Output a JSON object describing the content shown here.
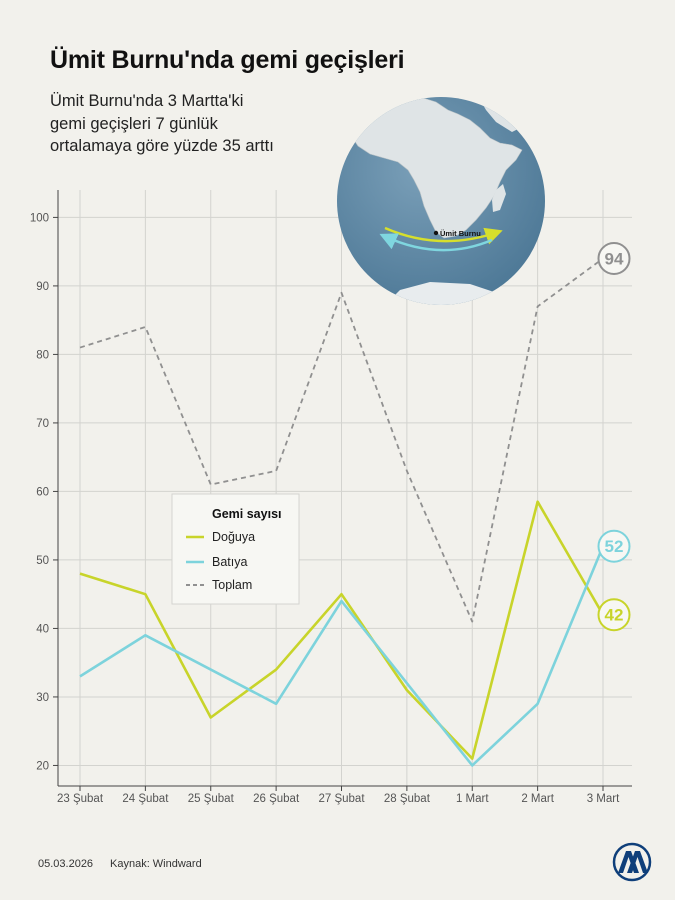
{
  "title": "Ümit Burnu'nda gemi geçişleri",
  "subtitle": "Ümit Burnu'nda  3 Martta'ki gemi geçişleri 7 günlük ortalamaya göre yüzde 35 arttı",
  "footer": {
    "date": "05.03.2026",
    "source": "Kaynak: Windward"
  },
  "logo": {
    "icon": "aa-logo-icon",
    "text": "AA"
  },
  "map": {
    "label": "Ümit Burnu",
    "ocean_color": "#5f8aa6",
    "land_color": "#dfe4e6"
  },
  "chart_data": {
    "type": "line",
    "title": "Ümit Burnu'nda gemi geçişleri",
    "categories": [
      "23 Şubat",
      "24 Şubat",
      "25 Şubat",
      "26 Şubat",
      "27 Şubat",
      "28 Şubat",
      "1 Mart",
      "2 Mart",
      "3 Mart"
    ],
    "ylim": [
      17,
      104
    ],
    "yticks": [
      20,
      30,
      40,
      50,
      60,
      70,
      80,
      90,
      100
    ],
    "grid": true,
    "legend": {
      "title": "Gemi sayısı",
      "placement": "center-left"
    },
    "series": [
      {
        "name": "Doğuya",
        "color": "#c8d42a",
        "dashed": false,
        "values": [
          48,
          45,
          27,
          34,
          45,
          31,
          21,
          58.5,
          42
        ],
        "end_label": "42"
      },
      {
        "name": "Batıya",
        "color": "#7dd3dc",
        "dashed": false,
        "values": [
          33,
          39,
          34,
          29,
          44,
          32,
          20,
          29,
          52
        ],
        "end_label": "52"
      },
      {
        "name": "Toplam",
        "color": "#909090",
        "dashed": true,
        "values": [
          81,
          84,
          61,
          63,
          89,
          63,
          41,
          87,
          94
        ],
        "end_label": "94"
      }
    ]
  }
}
